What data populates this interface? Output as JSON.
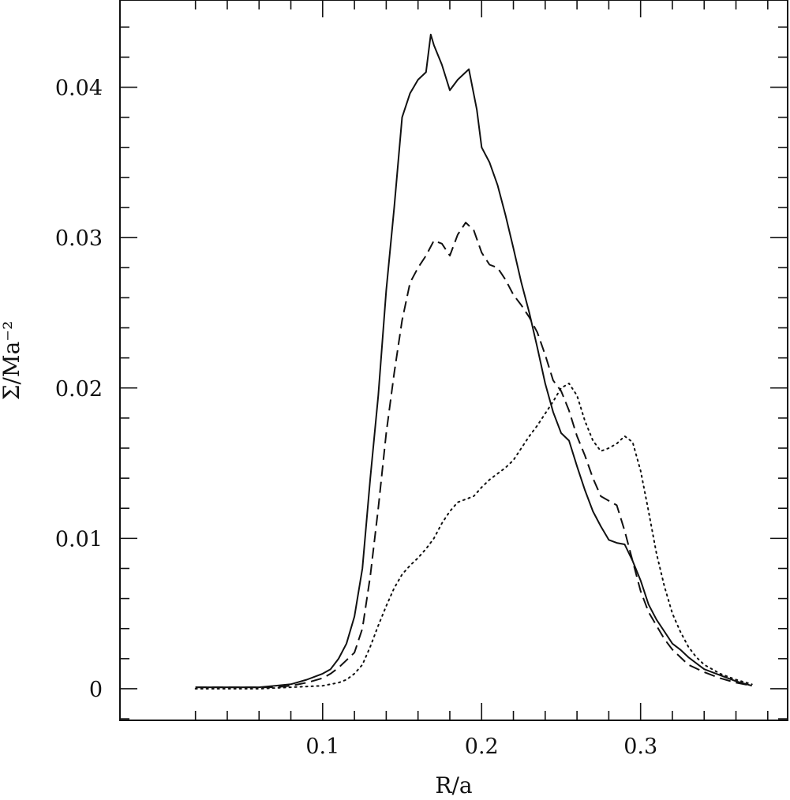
{
  "chart_data": {
    "type": "line",
    "title": "",
    "xlabel": "R/a",
    "ylabel": "Σ/Ma⁻²",
    "xlim": [
      -0.0275,
      0.3925
    ],
    "ylim": [
      -0.0021,
      0.0458
    ],
    "x_ticks": [
      0.1,
      0.2,
      0.3
    ],
    "x_tick_labels": [
      "0.1",
      "0.2",
      "0.3"
    ],
    "y_ticks": [
      0,
      0.01,
      0.02,
      0.03,
      0.04
    ],
    "y_tick_labels": [
      "0",
      "0.01",
      "0.02",
      "0.03",
      "0.04"
    ],
    "grid": false,
    "legend": "none",
    "series": [
      {
        "style": "solid",
        "x": [
          0.02,
          0.03,
          0.04,
          0.05,
          0.06,
          0.07,
          0.08,
          0.09,
          0.095,
          0.1,
          0.105,
          0.11,
          0.115,
          0.12,
          0.125,
          0.13,
          0.135,
          0.14,
          0.145,
          0.15,
          0.155,
          0.16,
          0.165,
          0.168,
          0.17,
          0.175,
          0.18,
          0.185,
          0.19,
          0.192,
          0.197,
          0.2,
          0.205,
          0.21,
          0.215,
          0.22,
          0.225,
          0.23,
          0.235,
          0.24,
          0.245,
          0.25,
          0.255,
          0.26,
          0.265,
          0.27,
          0.275,
          0.28,
          0.285,
          0.29,
          0.295,
          0.3,
          0.305,
          0.31,
          0.315,
          0.32,
          0.325,
          0.33,
          0.34,
          0.35,
          0.36,
          0.37
        ],
        "y": [
          0.0001,
          0.0001,
          0.0001,
          0.0001,
          0.0001,
          0.0002,
          0.0003,
          0.0006,
          0.0008,
          0.001,
          0.0013,
          0.002,
          0.003,
          0.0048,
          0.008,
          0.014,
          0.0195,
          0.0265,
          0.032,
          0.038,
          0.0396,
          0.0405,
          0.041,
          0.0435,
          0.0428,
          0.0415,
          0.0398,
          0.0405,
          0.041,
          0.0412,
          0.0385,
          0.036,
          0.035,
          0.0335,
          0.0315,
          0.0293,
          0.027,
          0.025,
          0.0227,
          0.0203,
          0.0184,
          0.017,
          0.0165,
          0.0148,
          0.0132,
          0.0118,
          0.0108,
          0.0099,
          0.0097,
          0.0096,
          0.0085,
          0.0072,
          0.0056,
          0.0046,
          0.0038,
          0.003,
          0.0026,
          0.0021,
          0.0013,
          0.0009,
          0.0005,
          0.0002
        ]
      },
      {
        "style": "dashed",
        "x": [
          0.02,
          0.03,
          0.04,
          0.05,
          0.06,
          0.07,
          0.08,
          0.09,
          0.1,
          0.105,
          0.11,
          0.115,
          0.12,
          0.125,
          0.13,
          0.135,
          0.14,
          0.145,
          0.15,
          0.155,
          0.16,
          0.165,
          0.17,
          0.175,
          0.18,
          0.185,
          0.19,
          0.195,
          0.2,
          0.205,
          0.21,
          0.215,
          0.22,
          0.225,
          0.23,
          0.235,
          0.24,
          0.245,
          0.25,
          0.255,
          0.26,
          0.265,
          0.27,
          0.275,
          0.28,
          0.285,
          0.29,
          0.295,
          0.3,
          0.305,
          0.31,
          0.315,
          0.32,
          0.325,
          0.33,
          0.34,
          0.35,
          0.36,
          0.37
        ],
        "y": [
          0.0001,
          0.0001,
          0.0001,
          0.0001,
          0.0001,
          0.0001,
          0.0002,
          0.0004,
          0.0007,
          0.001,
          0.0014,
          0.0019,
          0.0024,
          0.004,
          0.0075,
          0.012,
          0.017,
          0.021,
          0.0245,
          0.027,
          0.028,
          0.0288,
          0.0298,
          0.0296,
          0.0288,
          0.0302,
          0.031,
          0.0305,
          0.029,
          0.0282,
          0.028,
          0.0272,
          0.0262,
          0.0255,
          0.0247,
          0.0237,
          0.0222,
          0.0205,
          0.0198,
          0.0185,
          0.0168,
          0.0155,
          0.014,
          0.0128,
          0.0125,
          0.0122,
          0.0105,
          0.0085,
          0.0065,
          0.0051,
          0.0042,
          0.0033,
          0.0026,
          0.0021,
          0.0016,
          0.0011,
          0.0007,
          0.0004,
          0.0002
        ]
      },
      {
        "style": "dotted",
        "x": [
          0.02,
          0.04,
          0.06,
          0.08,
          0.1,
          0.11,
          0.115,
          0.12,
          0.125,
          0.13,
          0.135,
          0.14,
          0.145,
          0.15,
          0.155,
          0.16,
          0.165,
          0.17,
          0.175,
          0.18,
          0.185,
          0.19,
          0.195,
          0.2,
          0.205,
          0.21,
          0.215,
          0.22,
          0.225,
          0.23,
          0.235,
          0.24,
          0.245,
          0.25,
          0.255,
          0.26,
          0.265,
          0.27,
          0.275,
          0.28,
          0.285,
          0.29,
          0.295,
          0.3,
          0.305,
          0.31,
          0.315,
          0.32,
          0.325,
          0.33,
          0.335,
          0.34,
          0.35,
          0.36,
          0.37
        ],
        "y": [
          0,
          0,
          0,
          0.0001,
          0.0002,
          0.0004,
          0.0006,
          0.001,
          0.0016,
          0.0028,
          0.0042,
          0.0055,
          0.0067,
          0.0076,
          0.0082,
          0.0087,
          0.0093,
          0.01,
          0.011,
          0.0118,
          0.0124,
          0.0126,
          0.0128,
          0.0134,
          0.0139,
          0.0143,
          0.0147,
          0.0152,
          0.016,
          0.0168,
          0.0175,
          0.0183,
          0.0191,
          0.02,
          0.0203,
          0.0195,
          0.0178,
          0.0165,
          0.0158,
          0.016,
          0.0163,
          0.0168,
          0.0164,
          0.0145,
          0.0118,
          0.009,
          0.0068,
          0.005,
          0.0038,
          0.0028,
          0.0021,
          0.0016,
          0.001,
          0.0006,
          0.0003
        ]
      }
    ]
  }
}
